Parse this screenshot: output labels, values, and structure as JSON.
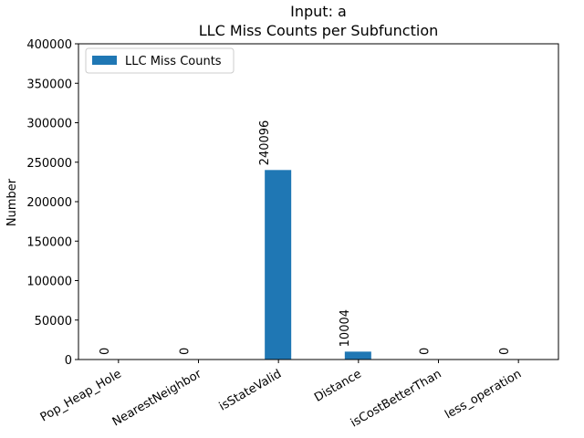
{
  "chart_data": {
    "type": "bar",
    "title": "Input: a",
    "subtitle": "LLC Miss Counts per Subfunction",
    "xlabel": "",
    "ylabel": "Number",
    "categories": [
      "Pop_Heap_Hole",
      "NearestNeighbor",
      "isStateValid",
      "Distance",
      "isCostBetterThan",
      "less_operation"
    ],
    "series": [
      {
        "name": "LLC Miss Counts",
        "values": [
          0,
          0,
          240096,
          10004,
          0,
          0
        ]
      }
    ],
    "data_labels": [
      "0",
      "0",
      "240096",
      "10004",
      "0",
      "0"
    ],
    "ylim": [
      0,
      400000
    ],
    "yticks": [
      0,
      50000,
      100000,
      150000,
      200000,
      250000,
      300000,
      350000,
      400000
    ],
    "ytick_labels": [
      "0",
      "50000",
      "100000",
      "150000",
      "200000",
      "250000",
      "300000",
      "350000",
      "400000"
    ],
    "legend": "top-left",
    "grid": false,
    "colors": {
      "bar": "#1f77b4"
    }
  }
}
